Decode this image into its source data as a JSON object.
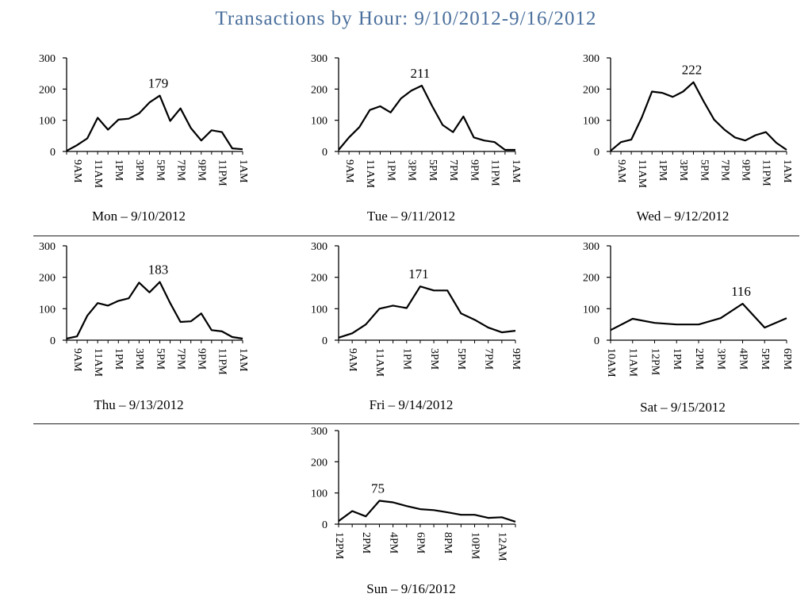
{
  "title": "Transactions by Hour: 9/10/2012-9/16/2012",
  "colors": {
    "title": "#4a6f9c",
    "line": "#000000",
    "axis": "#000000",
    "divider": "#222222"
  },
  "chart_data": [
    {
      "type": "line",
      "xlabel": "Mon – 9/10/2012",
      "ylim": [
        0,
        300
      ],
      "yticks": [
        0,
        100,
        200,
        300
      ],
      "xticks": [
        "9AM",
        "11AM",
        "1PM",
        "3PM",
        "5PM",
        "7PM",
        "9PM",
        "11PM",
        "1AM"
      ],
      "x": [
        "8AM",
        "9AM",
        "10AM",
        "11AM",
        "12PM",
        "1PM",
        "2PM",
        "3PM",
        "4PM",
        "5PM",
        "6PM",
        "7PM",
        "8PM",
        "9PM",
        "10PM",
        "11PM",
        "12AM",
        "1AM"
      ],
      "values": [
        2,
        20,
        42,
        108,
        70,
        102,
        105,
        122,
        157,
        179,
        98,
        138,
        75,
        35,
        68,
        62,
        10,
        7
      ],
      "peak_label": "179",
      "grid": false
    },
    {
      "type": "line",
      "xlabel": "Tue – 9/11/2012",
      "ylim": [
        0,
        300
      ],
      "yticks": [
        0,
        100,
        200,
        300
      ],
      "xticks": [
        "9AM",
        "11AM",
        "1PM",
        "3PM",
        "5PM",
        "7PM",
        "9PM",
        "11PM",
        "1AM"
      ],
      "x": [
        "8AM",
        "9AM",
        "10AM",
        "11AM",
        "12PM",
        "1PM",
        "2PM",
        "3PM",
        "4PM",
        "5PM",
        "6PM",
        "7PM",
        "8PM",
        "9PM",
        "10PM",
        "11PM",
        "12AM",
        "1AM"
      ],
      "values": [
        5,
        45,
        78,
        133,
        145,
        125,
        170,
        195,
        211,
        145,
        85,
        62,
        112,
        45,
        35,
        30,
        5,
        5
      ],
      "peak_label": "211",
      "grid": false
    },
    {
      "type": "line",
      "xlabel": "Wed – 9/12/2012",
      "ylim": [
        0,
        300
      ],
      "yticks": [
        0,
        100,
        200,
        300
      ],
      "xticks": [
        "9AM",
        "11AM",
        "1PM",
        "3PM",
        "5PM",
        "7PM",
        "9PM",
        "11PM",
        "1AM"
      ],
      "x": [
        "8AM",
        "9AM",
        "10AM",
        "11AM",
        "12PM",
        "1PM",
        "2PM",
        "3PM",
        "4PM",
        "5PM",
        "6PM",
        "7PM",
        "8PM",
        "9PM",
        "10PM",
        "11PM",
        "12AM",
        "1AM"
      ],
      "values": [
        2,
        30,
        38,
        108,
        192,
        188,
        175,
        192,
        222,
        160,
        102,
        70,
        45,
        35,
        52,
        62,
        28,
        5
      ],
      "peak_label": "222",
      "grid": false
    },
    {
      "type": "line",
      "xlabel": "Thu – 9/13/2012",
      "ylim": [
        0,
        300
      ],
      "yticks": [
        0,
        100,
        200,
        300
      ],
      "xticks": [
        "9AM",
        "11AM",
        "1PM",
        "3PM",
        "5PM",
        "7PM",
        "9PM",
        "11PM",
        "1AM"
      ],
      "x": [
        "8AM",
        "9AM",
        "10AM",
        "11AM",
        "12PM",
        "1PM",
        "2PM",
        "3PM",
        "4PM",
        "5PM",
        "6PM",
        "7PM",
        "8PM",
        "9PM",
        "10PM",
        "11PM",
        "12AM",
        "1AM"
      ],
      "values": [
        5,
        12,
        78,
        118,
        110,
        125,
        133,
        183,
        152,
        185,
        118,
        58,
        60,
        85,
        32,
        28,
        10,
        5
      ],
      "peak_label": "183",
      "grid": false
    },
    {
      "type": "line",
      "xlabel": "Fri – 9/14/2012",
      "ylim": [
        0,
        300
      ],
      "yticks": [
        0,
        100,
        200,
        300
      ],
      "xticks": [
        "9AM",
        "11AM",
        "1PM",
        "3PM",
        "5PM",
        "7PM",
        "9PM"
      ],
      "x": [
        "8AM",
        "9AM",
        "10AM",
        "11AM",
        "12PM",
        "1PM",
        "2PM",
        "3PM",
        "4PM",
        "5PM",
        "6PM",
        "7PM",
        "8PM",
        "9PM"
      ],
      "values": [
        8,
        22,
        50,
        100,
        110,
        102,
        171,
        158,
        158,
        85,
        65,
        40,
        25,
        30
      ],
      "peak_label": "171",
      "grid": false
    },
    {
      "type": "line",
      "xlabel": "Sat – 9/15/2012",
      "ylim": [
        0,
        300
      ],
      "yticks": [
        0,
        100,
        200,
        300
      ],
      "xticks": [
        "10AM",
        "11AM",
        "12PM",
        "1PM",
        "2PM",
        "3PM",
        "4PM",
        "5PM",
        "6PM"
      ],
      "x": [
        "10AM",
        "11AM",
        "12PM",
        "1PM",
        "2PM",
        "3PM",
        "4PM",
        "5PM",
        "6PM"
      ],
      "values": [
        32,
        68,
        55,
        50,
        50,
        70,
        116,
        40,
        70
      ],
      "peak_label": "116",
      "grid": false
    },
    {
      "type": "line",
      "xlabel": "Sun – 9/16/2012",
      "ylim": [
        0,
        300
      ],
      "yticks": [
        0,
        100,
        200,
        300
      ],
      "xticks": [
        "12PM",
        "2PM",
        "4PM",
        "6PM",
        "8PM",
        "10PM",
        "12AM"
      ],
      "x": [
        "12PM",
        "1PM",
        "2PM",
        "3PM",
        "4PM",
        "5PM",
        "6PM",
        "7PM",
        "8PM",
        "9PM",
        "10PM",
        "11PM",
        "12AM",
        "1AM"
      ],
      "values": [
        10,
        42,
        25,
        75,
        70,
        58,
        48,
        45,
        38,
        30,
        30,
        20,
        22,
        8
      ],
      "peak_label": "75",
      "grid": false
    }
  ]
}
